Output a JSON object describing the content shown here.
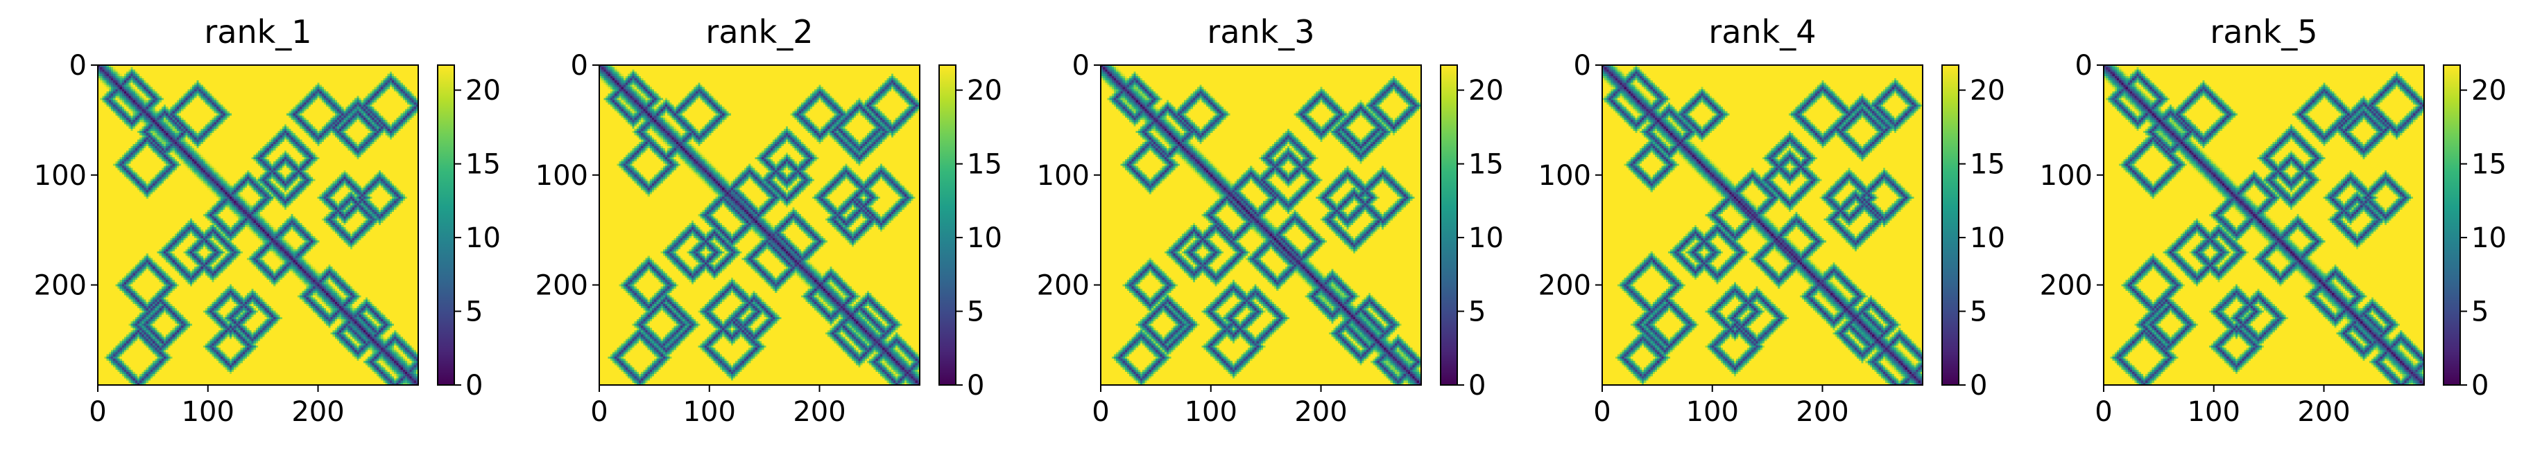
{
  "chart_data": [
    {
      "type": "heatmap",
      "title": "rank_1",
      "xlabel": "",
      "ylabel": "",
      "xticks": [
        "0",
        "100",
        "200"
      ],
      "yticks": [
        "0",
        "100",
        "200"
      ],
      "xlim": [
        0,
        291
      ],
      "ylim": [
        291,
        0
      ],
      "colorbar_ticks": [
        "0",
        "5",
        "10",
        "15",
        "20"
      ],
      "colorbar_range": [
        0,
        21.7
      ],
      "colormap": "viridis",
      "matrix_size": 291,
      "contact_pattern": {
        "diagonal": [
          [
            0,
            291
          ]
        ],
        "antidiagonal_blocks": [
          [
            30,
            30
          ],
          [
            20,
            60
          ],
          [
            75,
            95
          ],
          [
            150,
            150
          ],
          [
            160,
            175
          ],
          [
            200,
            200
          ],
          [
            215,
            220
          ],
          [
            235,
            250
          ],
          [
            255,
            265
          ],
          [
            280,
            280
          ],
          [
            60,
            230
          ],
          [
            30,
            250
          ],
          [
            100,
            250
          ],
          [
            40,
            200
          ],
          [
            95,
            170
          ],
          [
            200,
            60
          ],
          [
            230,
            40
          ],
          [
            250,
            30
          ],
          [
            250,
            100
          ],
          [
            200,
            40
          ],
          [
            170,
            95
          ]
        ]
      }
    },
    {
      "type": "heatmap",
      "title": "rank_2",
      "xlabel": "",
      "ylabel": "",
      "xticks": [
        "0",
        "100",
        "200"
      ],
      "yticks": [
        "0",
        "100",
        "200"
      ],
      "xlim": [
        0,
        291
      ],
      "ylim": [
        291,
        0
      ],
      "colorbar_ticks": [
        "0",
        "5",
        "10",
        "15",
        "20"
      ],
      "colorbar_range": [
        0,
        21.7
      ],
      "colormap": "viridis",
      "matrix_size": 291
    },
    {
      "type": "heatmap",
      "title": "rank_3",
      "xlabel": "",
      "ylabel": "",
      "xticks": [
        "0",
        "100",
        "200"
      ],
      "yticks": [
        "0",
        "100",
        "200"
      ],
      "xlim": [
        0,
        291
      ],
      "ylim": [
        291,
        0
      ],
      "colorbar_ticks": [
        "0",
        "5",
        "10",
        "15",
        "20"
      ],
      "colorbar_range": [
        0,
        21.7
      ],
      "colormap": "viridis",
      "matrix_size": 291
    },
    {
      "type": "heatmap",
      "title": "rank_4",
      "xlabel": "",
      "ylabel": "",
      "xticks": [
        "0",
        "100",
        "200"
      ],
      "yticks": [
        "0",
        "100",
        "200"
      ],
      "xlim": [
        0,
        291
      ],
      "ylim": [
        291,
        0
      ],
      "colorbar_ticks": [
        "0",
        "5",
        "10",
        "15",
        "20"
      ],
      "colorbar_range": [
        0,
        21.7
      ],
      "colormap": "viridis",
      "matrix_size": 291
    },
    {
      "type": "heatmap",
      "title": "rank_5",
      "xlabel": "",
      "ylabel": "",
      "xticks": [
        "0",
        "100",
        "200"
      ],
      "yticks": [
        "0",
        "100",
        "200"
      ],
      "xlim": [
        0,
        291
      ],
      "ylim": [
        291,
        0
      ],
      "colorbar_ticks": [
        "0",
        "5",
        "10",
        "15",
        "20"
      ],
      "colorbar_range": [
        0,
        21.7
      ],
      "colormap": "viridis",
      "matrix_size": 291
    }
  ],
  "colors": {
    "viridis_stops": [
      "#440154",
      "#482878",
      "#3e4989",
      "#31688e",
      "#26828e",
      "#1f9e89",
      "#35b779",
      "#6ece58",
      "#b5de2b",
      "#fde725"
    ],
    "background": "#ffffff",
    "axis": "#000000"
  }
}
